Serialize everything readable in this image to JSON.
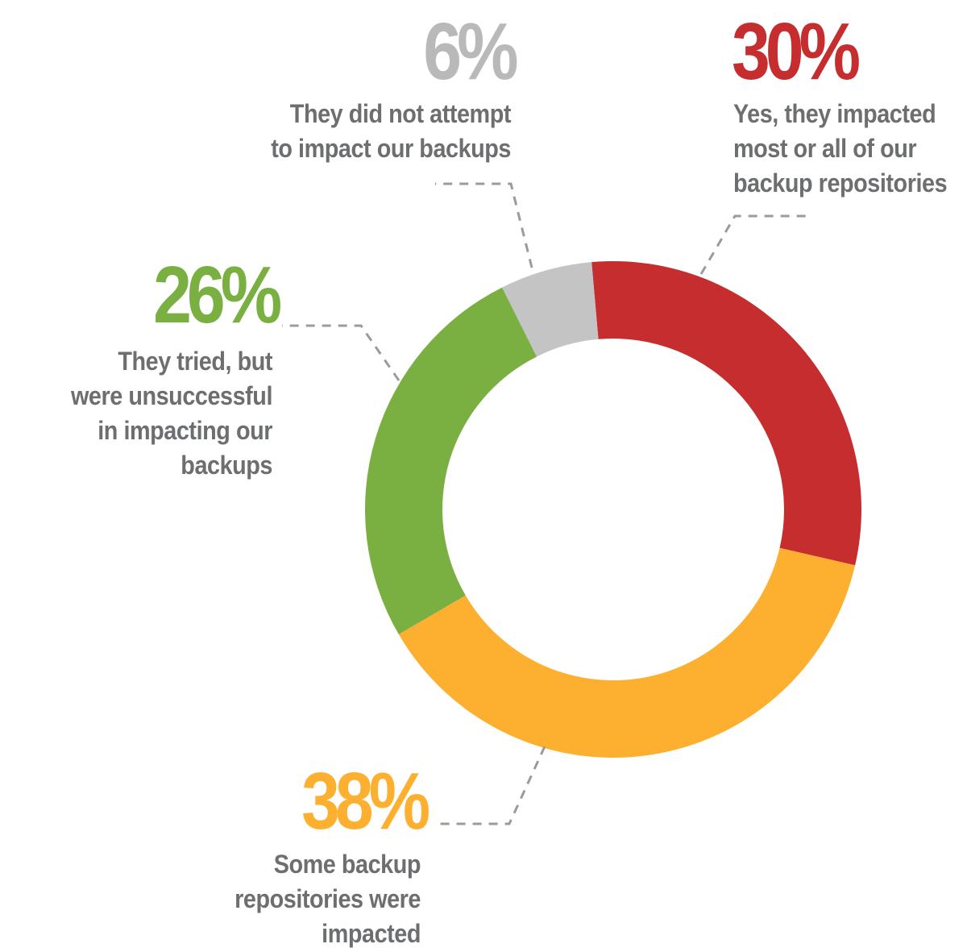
{
  "colors": {
    "red": "#c62d2f",
    "orange": "#fdb02f",
    "green": "#7aaf42",
    "gray": "#c4c4c4",
    "text_gray": "#6d6e70",
    "pct_gray": "#b9b9b9",
    "leader": "#9b9b9b"
  },
  "chart_data": {
    "type": "pie",
    "donut": true,
    "start_angle_deg": -5,
    "direction": "clockwise",
    "slices": [
      {
        "label": "Yes, they impacted most or all of our backup repositories",
        "value": 30,
        "display": "30%",
        "color": "#c62d2f"
      },
      {
        "label": "Some backup repositories were impacted",
        "value": 38,
        "display": "38%",
        "color": "#fdb02f"
      },
      {
        "label": "They tried, but were unsuccessful in impacting our backups",
        "value": 26,
        "display": "26%",
        "color": "#7aaf42"
      },
      {
        "label": "They did not attempt to impact our backups",
        "value": 6,
        "display": "6%",
        "color": "#c4c4c4"
      }
    ]
  },
  "labels": {
    "red": {
      "pct": "30%",
      "text": "Yes, they impacted\nmost or all of our\nbackup repositories"
    },
    "orange": {
      "pct": "38%",
      "text": "Some backup\nrepositories were\nimpacted"
    },
    "green": {
      "pct": "26%",
      "text": "They tried, but\nwere unsuccessful\nin impacting our\nbackups"
    },
    "gray": {
      "pct": "6%",
      "text": "They did not attempt\nto impact our backups"
    }
  }
}
